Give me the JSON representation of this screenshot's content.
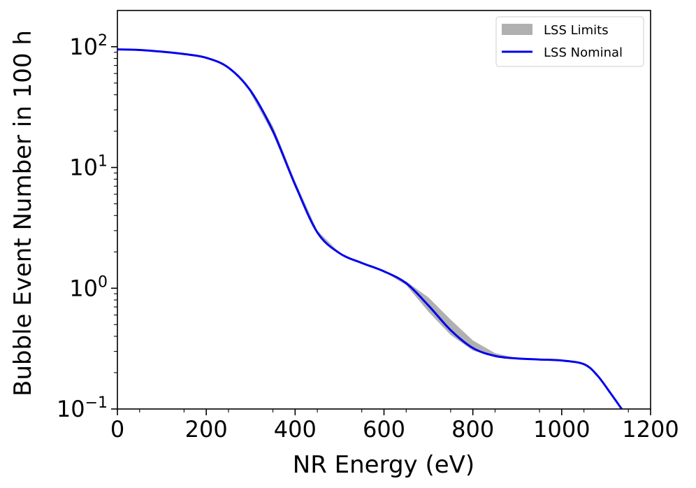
{
  "chart_data": {
    "type": "line",
    "title": "",
    "xlabel": "NR Energy (eV)",
    "ylabel": "Bubble Event Number in 100 h",
    "xlim": [
      0,
      1200
    ],
    "ylim_log10": [
      -1,
      2.3
    ],
    "yscale": "log",
    "x_ticks": [
      0,
      200,
      400,
      600,
      800,
      1000,
      1200
    ],
    "y_ticks": [
      {
        "exp": 2,
        "base": "10",
        "sup": "2"
      },
      {
        "exp": 1,
        "base": "10",
        "sup": "1"
      },
      {
        "exp": 0,
        "base": "10",
        "sup": "0"
      },
      {
        "exp": -1,
        "base": "10",
        "sup": "−1"
      }
    ],
    "legend": {
      "position": "top-right",
      "entries": [
        {
          "label": "LSS Limits",
          "kind": "band",
          "color": "#b0b0b0"
        },
        {
          "label": "LSS Nominal",
          "kind": "line",
          "color": "#0000ee"
        }
      ]
    },
    "series": [
      {
        "name": "LSS Nominal",
        "color": "#0000ee",
        "x": [
          0,
          50,
          100,
          150,
          200,
          250,
          300,
          350,
          400,
          450,
          500,
          550,
          600,
          650,
          700,
          750,
          800,
          850,
          900,
          950,
          1000,
          1050,
          1080,
          1110,
          1135
        ],
        "y": [
          95,
          94,
          91,
          87,
          81,
          67,
          43,
          20,
          7.2,
          2.9,
          1.95,
          1.62,
          1.38,
          1.1,
          0.72,
          0.45,
          0.32,
          0.275,
          0.262,
          0.257,
          0.252,
          0.235,
          0.19,
          0.135,
          0.1
        ]
      }
    ],
    "band": {
      "name": "LSS Limits",
      "color": "#b0b0b0",
      "x": [
        300,
        350,
        400,
        450,
        500,
        550,
        600,
        650,
        700,
        750,
        800,
        850,
        900
      ],
      "y_upper": [
        45,
        22,
        7.7,
        3.0,
        1.97,
        1.63,
        1.39,
        1.14,
        0.84,
        0.55,
        0.37,
        0.29,
        0.263
      ],
      "y_lower": [
        41,
        19,
        6.8,
        2.8,
        1.93,
        1.61,
        1.37,
        1.06,
        0.64,
        0.41,
        0.305,
        0.27,
        0.26
      ]
    }
  }
}
